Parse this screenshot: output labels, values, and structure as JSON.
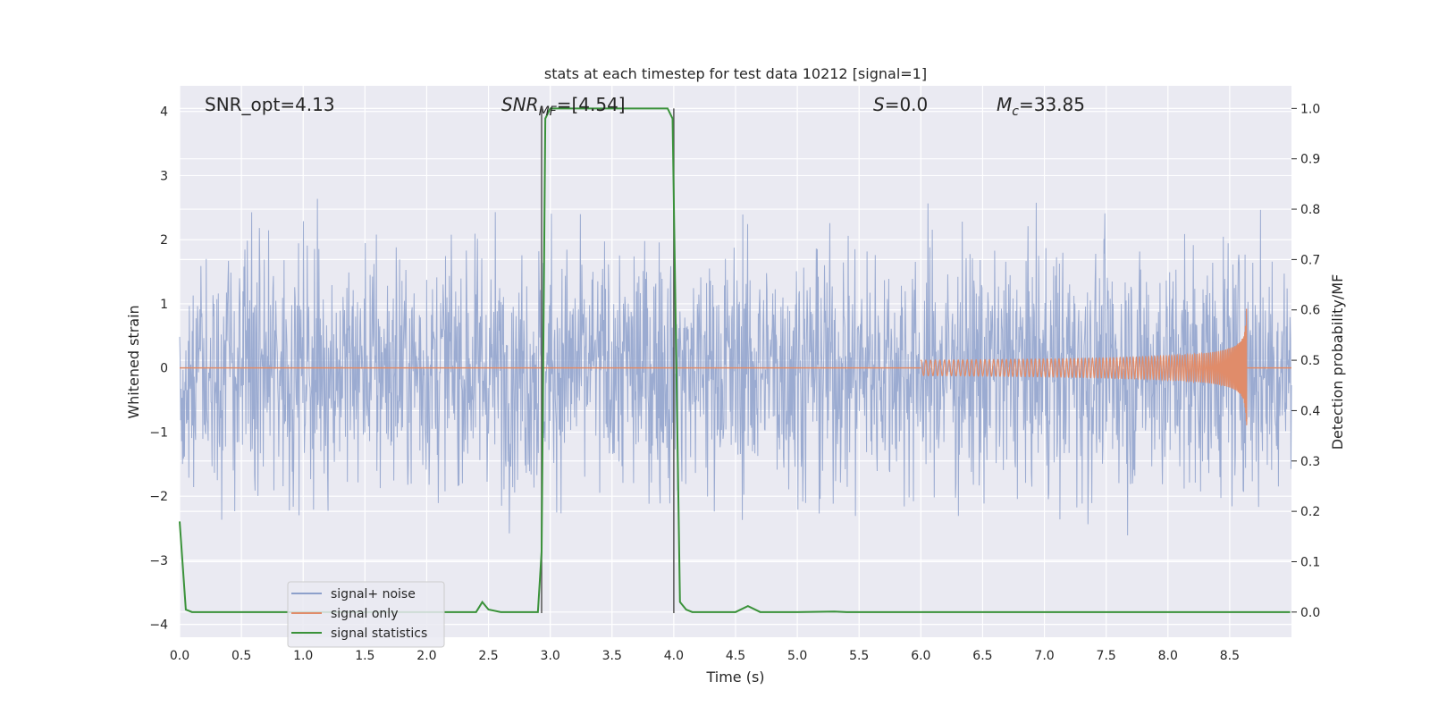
{
  "chart_data": {
    "type": "line",
    "title": "stats at each timestep for test data 10212 [signal=1]",
    "xlabel": "Time (s)",
    "ylabel": "Whitened strain",
    "ylabel_right": "Detection probability/MF",
    "xlim": [
      0.0,
      9.0
    ],
    "ylim": [
      -4.2,
      4.4
    ],
    "ylim_right": [
      -0.05,
      1.045
    ],
    "x_ticks": [
      "0.0",
      "0.5",
      "1.0",
      "1.5",
      "2.0",
      "2.5",
      "3.0",
      "3.5",
      "4.0",
      "4.5",
      "5.0",
      "5.5",
      "6.0",
      "6.5",
      "7.0",
      "7.5",
      "8.0",
      "8.5"
    ],
    "y_ticks": [
      "4",
      "3",
      "2",
      "1",
      "0",
      "−1",
      "−2",
      "−3",
      "−4"
    ],
    "y_ticks_right": [
      "1.0",
      "0.9",
      "0.8",
      "0.7",
      "0.6",
      "0.5",
      "0.4",
      "0.3",
      "0.2",
      "0.1",
      "0.0"
    ],
    "grid": true,
    "legend_position": "lower-left",
    "annotations": {
      "snr_opt": "SNR_opt=4.13",
      "snr_mf_main": "SNR",
      "snr_mf_sub": "MF",
      "snr_mf_value": "=[4.54]",
      "s_main": "S",
      "s_value": "=0.0",
      "mc_main": "M",
      "mc_sub": "c",
      "mc_value": "=33.85"
    },
    "vlines_x": [
      2.93,
      4.0
    ],
    "series": [
      {
        "name": "signal+ noise",
        "color": "#8da0cb",
        "noise_std": 0.95,
        "duration": 9.0
      },
      {
        "name": "signal only",
        "color": "#e08c6a",
        "merger_time": 8.64,
        "peak_amplitude": 1.05
      },
      {
        "name": "signal statistics",
        "color": "#3a923a",
        "x": [
          0.0,
          0.05,
          0.1,
          0.15,
          0.2,
          2.3,
          2.4,
          2.45,
          2.5,
          2.6,
          2.7,
          2.8,
          2.9,
          2.93,
          2.96,
          3.0,
          3.5,
          3.95,
          3.99,
          4.05,
          4.1,
          4.15,
          4.3,
          4.5,
          4.6,
          4.7,
          4.8,
          5.0,
          5.3,
          5.4,
          6.0,
          8.99
        ],
        "values": [
          0.18,
          0.005,
          0.0,
          0.0,
          0.0,
          0.0,
          0.0,
          0.02,
          0.005,
          0.0,
          0.0,
          0.0,
          0.0,
          0.12,
          0.98,
          1.0,
          1.0,
          1.0,
          0.98,
          0.02,
          0.005,
          0.0,
          0.0,
          0.0,
          0.012,
          0.0,
          0.0,
          0.0,
          0.001,
          0.0,
          0.0,
          0.0
        ]
      }
    ]
  }
}
